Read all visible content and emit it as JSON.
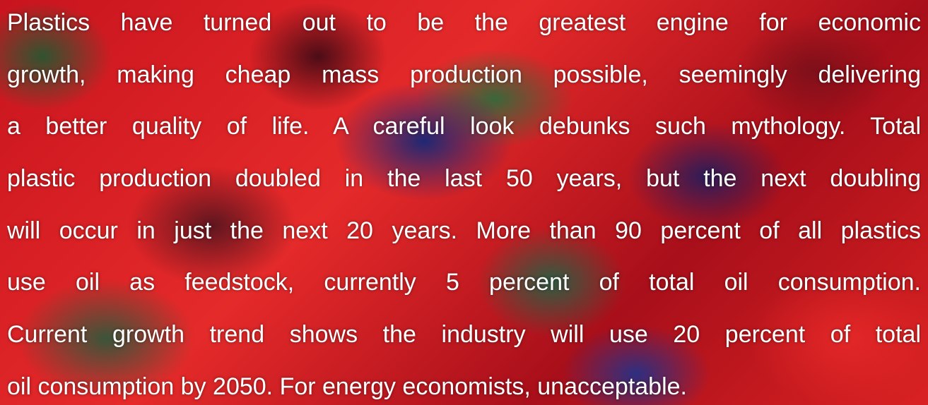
{
  "paragraph": {
    "lines": [
      "Plastics have turned out to be the greatest engine for economic",
      "growth, making cheap mass production possible, seemingly delivering",
      "a better quality of life. A careful look debunks such mythology. Total",
      "plastic production doubled in the last 50 years, but the next doubling",
      "will occur in just the next 20 years. More than 90 percent of all plastics",
      "use oil as feedstock, currently 5 percent of total oil consumption.",
      "Current growth trend shows the industry will use 20 percent of total",
      "oil consumption by 2050. For energy economists, unacceptable."
    ]
  }
}
